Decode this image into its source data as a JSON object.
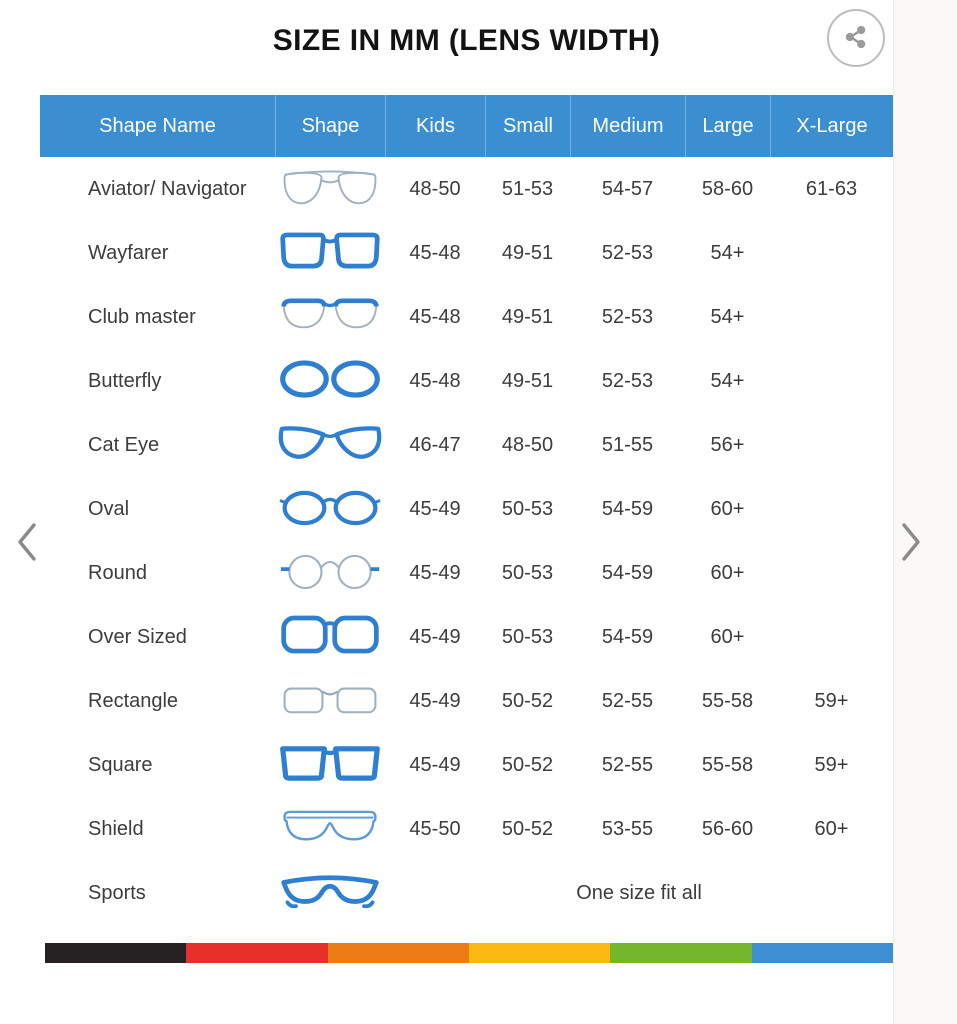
{
  "page": {
    "title": "SIZE IN MM (LENS WIDTH)",
    "accent_color": "#3b8ed0",
    "text_color": "#3d3d3d"
  },
  "header": {
    "share_icon": "share-icon"
  },
  "carousel": {
    "prev_icon": "chevron-left-icon",
    "next_icon": "chevron-right-icon"
  },
  "table": {
    "columns": [
      "Shape Name",
      "Shape",
      "Kids",
      "Small",
      "Medium",
      "Large",
      "X-Large"
    ],
    "rows": [
      {
        "name": "Aviator/ Navigator",
        "icon": "aviator-glasses-icon",
        "sizes": [
          "48-50",
          "51-53",
          "54-57",
          "58-60",
          "61-63"
        ]
      },
      {
        "name": "Wayfarer",
        "icon": "wayfarer-glasses-icon",
        "sizes": [
          "45-48",
          "49-51",
          "52-53",
          "54+",
          ""
        ]
      },
      {
        "name": "Club master",
        "icon": "clubmaster-glasses-icon",
        "sizes": [
          "45-48",
          "49-51",
          "52-53",
          "54+",
          ""
        ]
      },
      {
        "name": "Butterfly",
        "icon": "butterfly-glasses-icon",
        "sizes": [
          "45-48",
          "49-51",
          "52-53",
          "54+",
          ""
        ]
      },
      {
        "name": "Cat Eye",
        "icon": "cateye-glasses-icon",
        "sizes": [
          "46-47",
          "48-50",
          "51-55",
          "56+",
          ""
        ]
      },
      {
        "name": "Oval",
        "icon": "oval-glasses-icon",
        "sizes": [
          "45-49",
          "50-53",
          "54-59",
          "60+",
          ""
        ]
      },
      {
        "name": "Round",
        "icon": "round-glasses-icon",
        "sizes": [
          "45-49",
          "50-53",
          "54-59",
          "60+",
          ""
        ]
      },
      {
        "name": "Over Sized",
        "icon": "oversized-glasses-icon",
        "sizes": [
          "45-49",
          "50-53",
          "54-59",
          "60+",
          ""
        ]
      },
      {
        "name": "Rectangle",
        "icon": "rectangle-glasses-icon",
        "sizes": [
          "45-49",
          "50-52",
          "52-55",
          "55-58",
          "59+"
        ]
      },
      {
        "name": "Square",
        "icon": "square-glasses-icon",
        "sizes": [
          "45-49",
          "50-52",
          "52-55",
          "55-58",
          "59+"
        ]
      },
      {
        "name": "Shield",
        "icon": "shield-glasses-icon",
        "sizes": [
          "45-50",
          "50-52",
          "53-55",
          "56-60",
          "60+"
        ]
      },
      {
        "name": "Sports",
        "icon": "sports-glasses-icon",
        "span_text": "One size fit all"
      }
    ]
  },
  "footer": {
    "stripe_colors": [
      "#262223",
      "#e7302a",
      "#ee7c15",
      "#fcb813",
      "#74b72d",
      "#3d8ed2"
    ]
  }
}
